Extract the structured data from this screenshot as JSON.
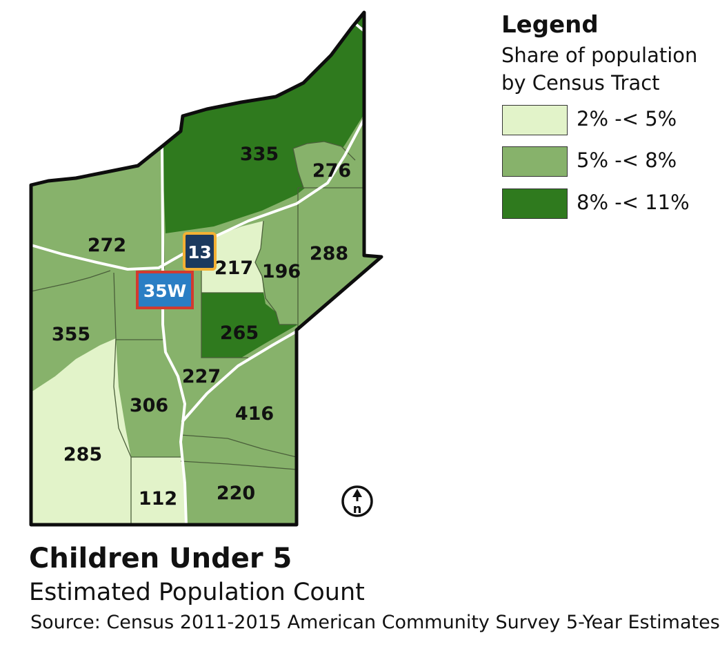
{
  "legend": {
    "title": "Legend",
    "subtitle": "Share of population by Census Tract",
    "classes": [
      {
        "label": "2% -< 5%",
        "color": "#e2f3c9"
      },
      {
        "label": "5% -< 8%",
        "color": "#87b26b"
      },
      {
        "label": "8% -< 11%",
        "color": "#2f7a1e"
      }
    ]
  },
  "tracts": [
    {
      "id": "272",
      "count": "272",
      "class": 1
    },
    {
      "id": "335",
      "count": "335",
      "class": 2
    },
    {
      "id": "276",
      "count": "276",
      "class": 1
    },
    {
      "id": "217",
      "count": "217",
      "class": 0
    },
    {
      "id": "196",
      "count": "196",
      "class": 1
    },
    {
      "id": "288",
      "count": "288",
      "class": 1
    },
    {
      "id": "355",
      "count": "355",
      "class": 1
    },
    {
      "id": "265",
      "count": "265",
      "class": 2
    },
    {
      "id": "227",
      "count": "227",
      "class": 1
    },
    {
      "id": "306",
      "count": "306",
      "class": 1
    },
    {
      "id": "416",
      "count": "416",
      "class": 1
    },
    {
      "id": "285",
      "count": "285",
      "class": 0
    },
    {
      "id": "112",
      "count": "112",
      "class": 0
    },
    {
      "id": "220",
      "count": "220",
      "class": 1
    }
  ],
  "road_shields": [
    {
      "label": "13",
      "fill": "#1c3a5e",
      "border": "#f2b134"
    },
    {
      "label": "35W",
      "fill": "#2a7ec4",
      "border": "#d23a2f"
    }
  ],
  "north_arrow": {
    "label": "n"
  },
  "title": "Children Under 5",
  "subtitle": "Estimated Population Count",
  "source": "Source: Census 2011-2015 American Community Survey 5-Year Estimates"
}
